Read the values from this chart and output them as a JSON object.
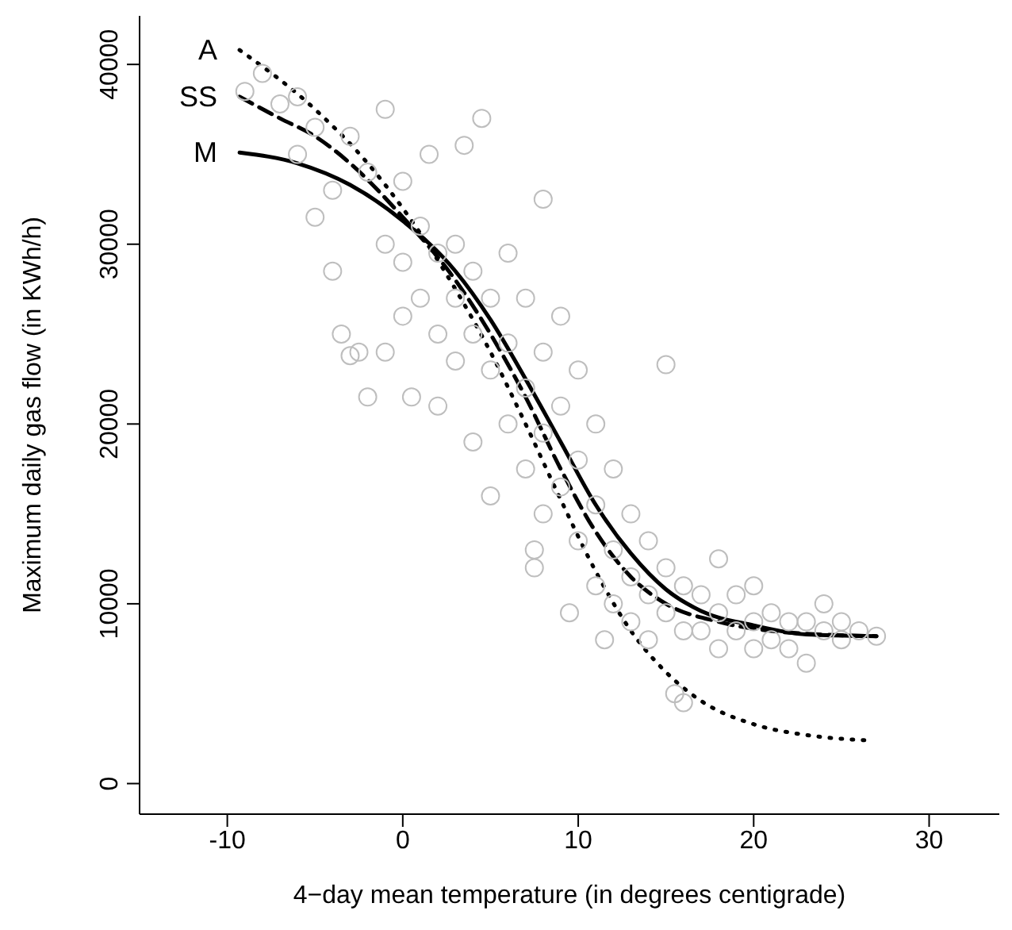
{
  "chart_data": {
    "type": "scatter",
    "xlabel": "4−day mean temperature (in degrees centigrade)",
    "ylabel": "Maximum daily gas flow (in KWh/h)",
    "xlim": [
      -15,
      34
    ],
    "ylim": [
      -1700,
      42700
    ],
    "xticks": [
      -10,
      0,
      10,
      20,
      30
    ],
    "yticks": [
      0,
      10000,
      20000,
      30000,
      40000
    ],
    "grid": false,
    "legend": false,
    "series": [
      {
        "color": "#bebebe",
        "marker": "circle",
        "x": [
          -9,
          -8,
          -7,
          -6,
          -6,
          -5,
          -5,
          -4,
          -4,
          -3.5,
          -3,
          -3,
          -2.5,
          -2,
          -2,
          -1,
          -1,
          -1,
          0,
          0,
          0,
          0.5,
          1,
          1,
          1.5,
          2,
          2,
          2,
          3,
          3,
          3,
          3.5,
          4,
          4,
          4,
          4.5,
          5,
          5,
          5,
          6,
          6,
          6,
          7,
          7,
          7,
          7.5,
          7.5,
          8,
          8,
          8,
          8,
          9,
          9,
          9,
          9.5,
          10,
          10,
          10,
          11,
          11,
          11,
          11.5,
          12,
          12,
          12,
          13,
          13,
          13,
          14,
          14,
          14,
          15,
          15,
          15,
          15.5,
          16,
          16,
          16,
          17,
          17,
          18,
          18,
          18,
          19,
          19,
          20,
          20,
          20,
          21,
          21,
          22,
          22,
          23,
          23,
          24,
          24,
          25,
          25,
          26,
          27
        ],
        "values": [
          38500,
          39500,
          37800,
          38200,
          35000,
          36500,
          31500,
          33000,
          28500,
          25000,
          23800,
          36000,
          24000,
          21500,
          34000,
          24000,
          37500,
          30000,
          33500,
          29000,
          26000,
          21500,
          31000,
          27000,
          35000,
          29500,
          25000,
          21000,
          30000,
          27000,
          23500,
          35500,
          28500,
          25000,
          19000,
          37000,
          27000,
          23000,
          16000,
          29500,
          24500,
          20000,
          27000,
          22000,
          17500,
          13000,
          12000,
          32500,
          24000,
          19500,
          15000,
          26000,
          21000,
          16500,
          9500,
          23000,
          18000,
          13500,
          20000,
          15500,
          11000,
          8000,
          17500,
          13000,
          10000,
          15000,
          11500,
          9000,
          13500,
          10500,
          8000,
          23300,
          12000,
          9500,
          5000,
          4500,
          11000,
          8500,
          10500,
          8500,
          12500,
          9500,
          7500,
          10500,
          8500,
          11000,
          9000,
          7500,
          9500,
          8000,
          9000,
          7500,
          6700,
          9000,
          8500,
          10000,
          8000,
          9000,
          8500,
          8200
        ]
      },
      {
        "type": "line",
        "name": "A",
        "color": "#000000",
        "line_style": "dotted",
        "marker": "none",
        "x": [
          -9.3,
          -5,
          -2,
          0,
          3,
          5,
          7,
          9,
          11,
          13,
          15,
          17,
          20,
          23,
          26.5
        ],
        "values": [
          40800,
          37500,
          34500,
          32000,
          27500,
          24000,
          20000,
          15800,
          11800,
          8500,
          6200,
          4600,
          3300,
          2700,
          2400
        ]
      },
      {
        "type": "line",
        "name": "SS",
        "color": "#000000",
        "line_style": "dashed",
        "marker": "none",
        "x": [
          -9.3,
          -7,
          -5,
          -3,
          0,
          3,
          5,
          7,
          9,
          11,
          13,
          15,
          18,
          22,
          27
        ],
        "values": [
          38200,
          37000,
          36000,
          34500,
          31500,
          28000,
          25000,
          21500,
          17500,
          14000,
          11500,
          10000,
          9000,
          8400,
          8200
        ]
      },
      {
        "type": "line",
        "name": "M",
        "color": "#000000",
        "line_style": "solid",
        "marker": "none",
        "x": [
          -9.3,
          -6,
          -3,
          0,
          3,
          5,
          7,
          9,
          11,
          13,
          15,
          17,
          20,
          23,
          27
        ],
        "values": [
          35100,
          34500,
          33300,
          31300,
          28500,
          25800,
          22500,
          19000,
          15500,
          12800,
          10800,
          9600,
          8800,
          8300,
          8200
        ]
      }
    ]
  }
}
